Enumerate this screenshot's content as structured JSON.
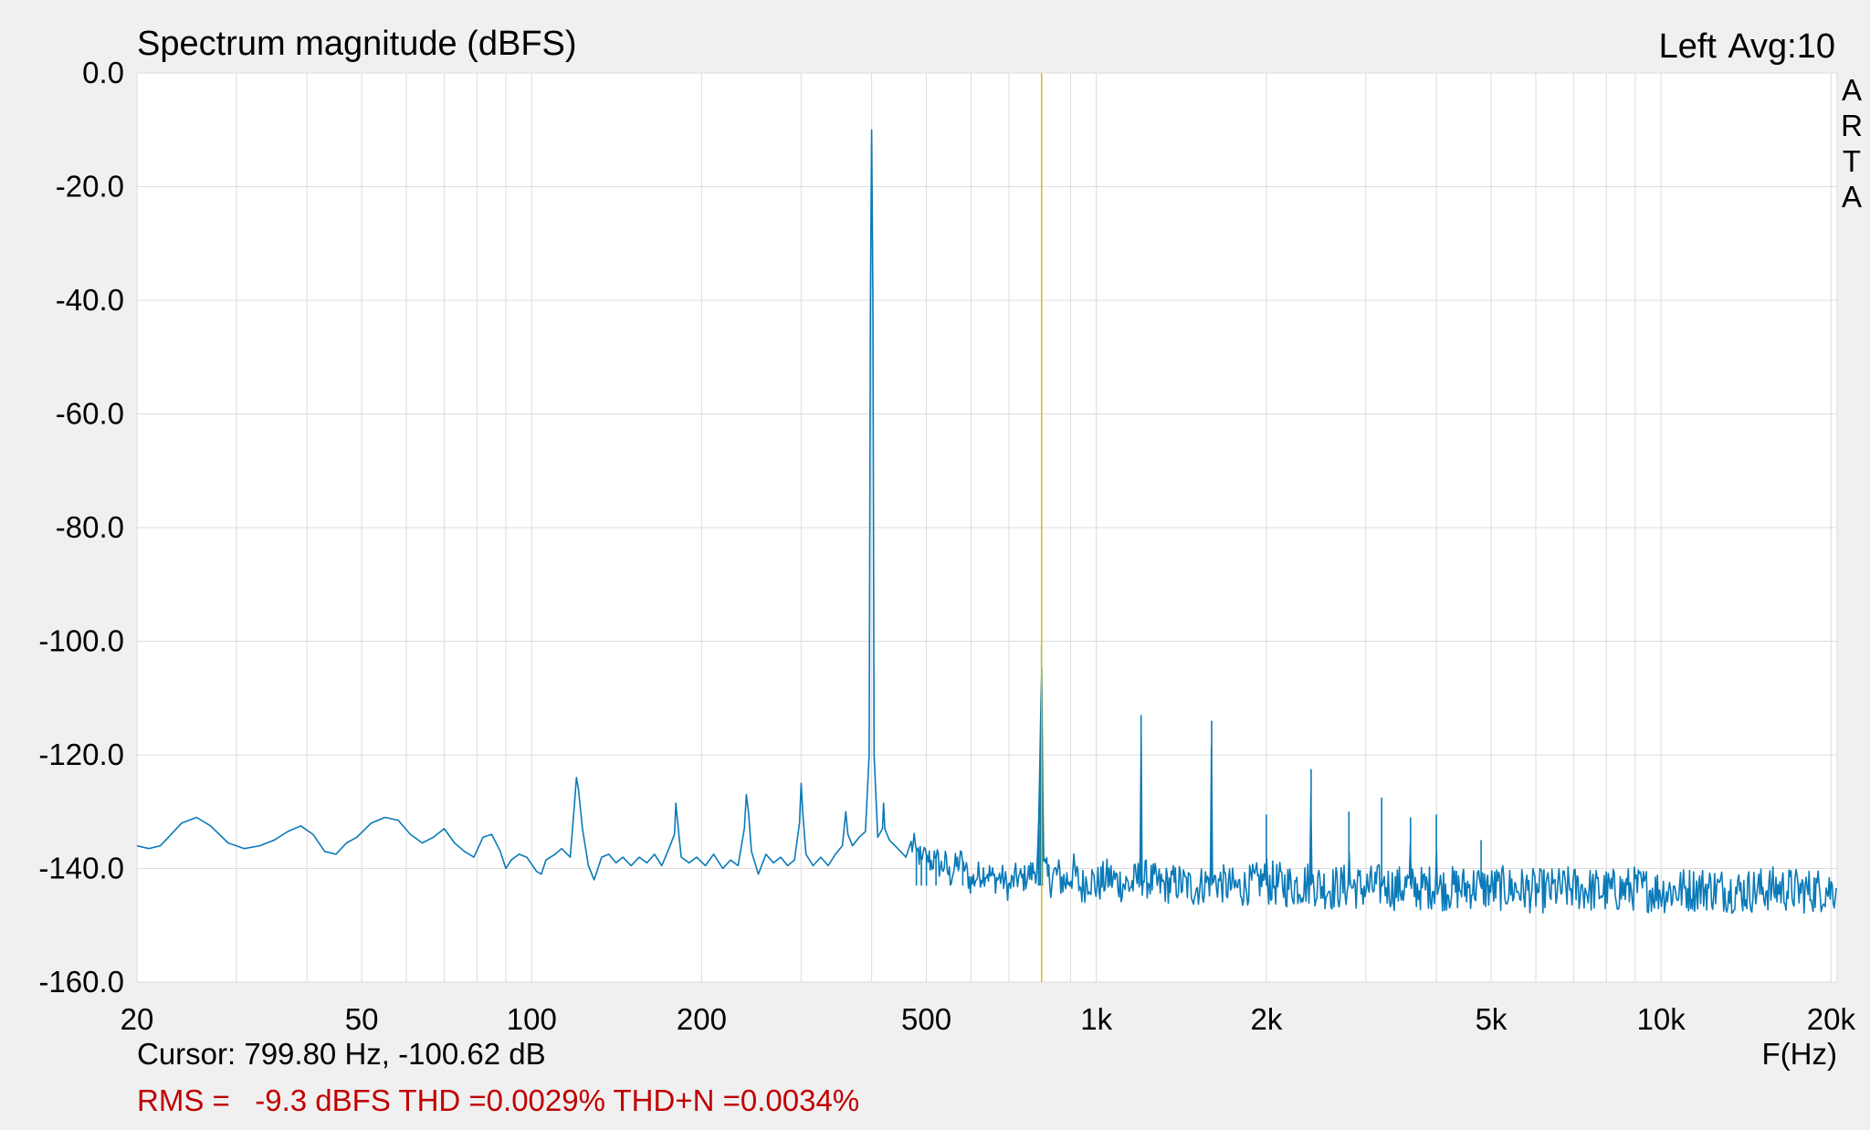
{
  "chart_data": {
    "type": "line",
    "title": "Spectrum magnitude (dBFS)",
    "channel": "Left",
    "averaging": "Avg:10",
    "brand_letters": [
      "A",
      "R",
      "T",
      "A"
    ],
    "xlabel": "F(Hz)",
    "ylabel": "",
    "x_scale": "log",
    "xlim": [
      20,
      20500
    ],
    "ylim": [
      -160,
      0
    ],
    "grid": true,
    "x_ticks": [
      {
        "value": 20,
        "label": "20"
      },
      {
        "value": 50,
        "label": "50"
      },
      {
        "value": 100,
        "label": "100"
      },
      {
        "value": 200,
        "label": "200"
      },
      {
        "value": 500,
        "label": "500"
      },
      {
        "value": 1000,
        "label": "1k"
      },
      {
        "value": 2000,
        "label": "2k"
      },
      {
        "value": 5000,
        "label": "5k"
      },
      {
        "value": 10000,
        "label": "10k"
      },
      {
        "value": 20000,
        "label": "20k"
      }
    ],
    "x_minor_gridlines": [
      30,
      40,
      60,
      70,
      80,
      90,
      300,
      400,
      600,
      700,
      800,
      900,
      3000,
      4000,
      6000,
      7000,
      8000,
      9000
    ],
    "y_ticks": [
      {
        "value": 0,
        "label": "0.0"
      },
      {
        "value": -20,
        "label": "-20.0"
      },
      {
        "value": -40,
        "label": "-40.0"
      },
      {
        "value": -60,
        "label": "-60.0"
      },
      {
        "value": -80,
        "label": "-80.0"
      },
      {
        "value": -100,
        "label": "-100.0"
      },
      {
        "value": -120,
        "label": "-120.0"
      },
      {
        "value": -140,
        "label": "-140.0"
      },
      {
        "value": -160,
        "label": "-160.0"
      }
    ],
    "cursor": {
      "frequency": 799.8,
      "level": -100.62,
      "readout": "Cursor: 799.80 Hz, -100.62 dB"
    },
    "stats_line": "RMS =   -9.3 dBFS THD =0.0029% THD+N =0.0034%",
    "colors": {
      "trace": "#0a7ab8",
      "cursor": "#d4c000",
      "stats": "#c00000",
      "plot_bg": "#ffffff",
      "frame_bg": "#f0f0f0",
      "grid": "#dcdcdc"
    },
    "series": [
      {
        "points": [
          [
            20,
            -136
          ],
          [
            21,
            -136.5
          ],
          [
            22,
            -136
          ],
          [
            23,
            -134
          ],
          [
            24,
            -132
          ],
          [
            25.5,
            -131
          ],
          [
            27,
            -132.5
          ],
          [
            29,
            -135.5
          ],
          [
            31,
            -136.5
          ],
          [
            33,
            -136
          ],
          [
            35,
            -135
          ],
          [
            37,
            -133.5
          ],
          [
            39,
            -132.5
          ],
          [
            41,
            -134
          ],
          [
            43,
            -137
          ],
          [
            45,
            -137.5
          ],
          [
            47,
            -135.5
          ],
          [
            49,
            -134.5
          ],
          [
            52,
            -132
          ],
          [
            55,
            -131
          ],
          [
            58,
            -131.5
          ],
          [
            61,
            -134
          ],
          [
            64,
            -135.5
          ],
          [
            67,
            -134.5
          ],
          [
            70,
            -133
          ],
          [
            73,
            -135.5
          ],
          [
            76,
            -137
          ],
          [
            79,
            -138
          ],
          [
            82,
            -134.5
          ],
          [
            85,
            -134
          ],
          [
            88,
            -137
          ],
          [
            90,
            -140
          ],
          [
            92,
            -138.5
          ],
          [
            95,
            -137.5
          ],
          [
            98,
            -138
          ],
          [
            102,
            -140.5
          ],
          [
            104,
            -141
          ],
          [
            106,
            -138.5
          ],
          [
            110,
            -137.5
          ],
          [
            113,
            -136.5
          ],
          [
            117,
            -138
          ],
          [
            119,
            -129
          ],
          [
            120,
            -124
          ],
          [
            121,
            -126
          ],
          [
            123,
            -133
          ],
          [
            126,
            -139.5
          ],
          [
            129,
            -142
          ],
          [
            133,
            -138
          ],
          [
            137,
            -137.5
          ],
          [
            141,
            -139
          ],
          [
            145,
            -138
          ],
          [
            150,
            -139.5
          ],
          [
            155,
            -138
          ],
          [
            160,
            -139
          ],
          [
            165,
            -137.5
          ],
          [
            170,
            -139.5
          ],
          [
            175,
            -136.5
          ],
          [
            179,
            -134
          ],
          [
            180,
            -128.5
          ],
          [
            181,
            -131
          ],
          [
            184,
            -138
          ],
          [
            190,
            -139
          ],
          [
            196,
            -138
          ],
          [
            203,
            -139.5
          ],
          [
            210,
            -137.5
          ],
          [
            218,
            -140
          ],
          [
            225,
            -138.5
          ],
          [
            232,
            -139.5
          ],
          [
            238,
            -133
          ],
          [
            240,
            -127
          ],
          [
            242,
            -130
          ],
          [
            245,
            -137
          ],
          [
            252,
            -141
          ],
          [
            260,
            -137.5
          ],
          [
            268,
            -139
          ],
          [
            276,
            -138
          ],
          [
            284,
            -139.5
          ],
          [
            292,
            -138.5
          ],
          [
            298,
            -132
          ],
          [
            300,
            -125
          ],
          [
            302,
            -130
          ],
          [
            306,
            -137.5
          ],
          [
            315,
            -139.5
          ],
          [
            325,
            -138
          ],
          [
            335,
            -139.5
          ],
          [
            345,
            -137.5
          ],
          [
            355,
            -136
          ],
          [
            360,
            -130
          ],
          [
            363,
            -134
          ],
          [
            370,
            -136
          ],
          [
            380,
            -134.5
          ],
          [
            390,
            -133.5
          ],
          [
            396,
            -120
          ],
          [
            398,
            -40
          ],
          [
            400,
            -10
          ],
          [
            402,
            -40
          ],
          [
            404,
            -120
          ],
          [
            410,
            -134.5
          ],
          [
            418,
            -133
          ],
          [
            420,
            -128.5
          ],
          [
            422,
            -133
          ],
          [
            430,
            -135
          ],
          [
            440,
            -136
          ],
          [
            450,
            -137
          ],
          [
            460,
            -138
          ],
          [
            470,
            -136
          ],
          [
            480,
            -136.5
          ],
          [
            490,
            -138.5
          ],
          [
            500,
            -137.5
          ],
          [
            510,
            -139
          ],
          [
            520,
            -138
          ],
          [
            530,
            -140
          ],
          [
            540,
            -139
          ],
          [
            550,
            -141.5
          ],
          [
            560,
            -140
          ],
          [
            570,
            -139
          ],
          [
            580,
            -138.5
          ],
          [
            590,
            -141
          ],
          [
            600,
            -142.5
          ],
          [
            620,
            -141
          ],
          [
            640,
            -140.5
          ],
          [
            660,
            -142
          ],
          [
            680,
            -141.5
          ],
          [
            700,
            -143.5
          ],
          [
            720,
            -141.5
          ],
          [
            740,
            -142
          ],
          [
            760,
            -141
          ],
          [
            785,
            -140
          ],
          [
            790,
            -133
          ],
          [
            795,
            -120
          ],
          [
            798,
            -110
          ],
          [
            799.8,
            -100.6
          ],
          [
            802,
            -115
          ],
          [
            806,
            -140
          ],
          [
            820,
            -142
          ],
          [
            850,
            -141
          ],
          [
            880,
            -142.5
          ],
          [
            910,
            -140.5
          ],
          [
            940,
            -143.5
          ],
          [
            970,
            -141.5
          ],
          [
            1000,
            -143
          ],
          [
            1050,
            -141.5
          ],
          [
            1100,
            -142.5
          ],
          [
            1150,
            -143
          ],
          [
            1195,
            -141.5
          ],
          [
            1200,
            -113
          ],
          [
            1205,
            -141.5
          ],
          [
            1300,
            -143
          ],
          [
            1400,
            -142.5
          ],
          [
            1500,
            -143.5
          ],
          [
            1595,
            -142
          ],
          [
            1600,
            -114
          ],
          [
            1605,
            -142
          ],
          [
            1700,
            -143
          ],
          [
            1800,
            -143.5
          ],
          [
            1900,
            -142.5
          ],
          [
            1995,
            -142
          ],
          [
            2000,
            -130.5
          ],
          [
            2005,
            -142.5
          ],
          [
            2200,
            -143
          ],
          [
            2395,
            -142.5
          ],
          [
            2400,
            -122.5
          ],
          [
            2405,
            -142.5
          ],
          [
            2600,
            -143.5
          ],
          [
            2795,
            -143
          ],
          [
            2800,
            -130
          ],
          [
            2805,
            -143
          ],
          [
            3000,
            -143.5
          ],
          [
            3195,
            -143
          ],
          [
            3200,
            -127.5
          ],
          [
            3205,
            -143
          ],
          [
            3400,
            -143.5
          ],
          [
            3595,
            -143
          ],
          [
            3600,
            -131
          ],
          [
            3605,
            -143.5
          ],
          [
            3800,
            -143.5
          ],
          [
            3995,
            -143
          ],
          [
            4000,
            -130.5
          ],
          [
            4005,
            -143.5
          ],
          [
            4400,
            -143.5
          ],
          [
            4795,
            -143
          ],
          [
            4800,
            -135
          ],
          [
            4805,
            -143.5
          ],
          [
            5500,
            -143.5
          ],
          [
            6000,
            -144
          ],
          [
            7000,
            -143.5
          ],
          [
            8000,
            -144
          ],
          [
            9000,
            -143.5
          ],
          [
            10000,
            -144
          ],
          [
            12000,
            -143.5
          ],
          [
            14000,
            -144
          ],
          [
            16000,
            -143.5
          ],
          [
            18000,
            -144
          ],
          [
            20500,
            -143.5
          ]
        ],
        "noise_band": [
          {
            "from": 470,
            "to": 800,
            "spread": 5
          },
          {
            "from": 800,
            "to": 2000,
            "spread": 7
          },
          {
            "from": 2000,
            "to": 20500,
            "spread": 8
          }
        ]
      }
    ]
  }
}
